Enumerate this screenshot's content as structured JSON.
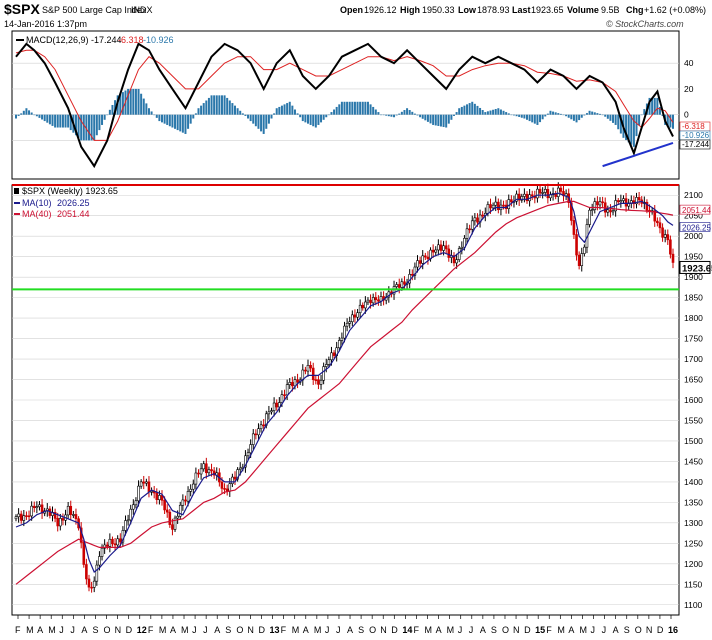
{
  "header": {
    "symbol": "$SPX",
    "name": "S&P 500 Large Cap Index",
    "exchange": "INDX",
    "date": "14-Jan-2016 1:37pm",
    "open_label": "Open",
    "open": "1926.12",
    "high_label": "High",
    "high": "1950.33",
    "low_label": "Low",
    "low": "1878.93",
    "last_label": "Last",
    "last": "1923.65",
    "volume_label": "Volume",
    "volume": "9.5B",
    "chg_label": "Chg",
    "chg": "+1.62 (+0.08%)",
    "watermark": "© StockCharts.com"
  },
  "colors": {
    "up_bar": "#000000",
    "down_bar": "#cc0000",
    "ma10": "#1a1a8c",
    "ma40": "#cc1133",
    "resistance": "#dd0000",
    "support": "#22dd22",
    "macd_line": "#000000",
    "signal_line": "#dd2222",
    "histogram": "#2a77aa",
    "trendline": "#2233cc",
    "grid": "#d0d0d0"
  },
  "chart_data": [
    {
      "type": "line",
      "panel": "MACD",
      "label": "MACD(12,26,9)",
      "values_text": {
        "macd": "-17.244",
        "signal": "-6.318",
        "histogram": "-10.926"
      },
      "ylim": [
        -50,
        65
      ],
      "yticks": [
        40,
        20,
        0,
        -20
      ],
      "right_labels": [
        "-6.318",
        "-10.926",
        "-17.244"
      ],
      "x_weeks": [
        0,
        4,
        7,
        11,
        15,
        20,
        25,
        30,
        35,
        39,
        43,
        47,
        51,
        55,
        60,
        65,
        70,
        75,
        80,
        85,
        90,
        95,
        100,
        105,
        110,
        115,
        120,
        125,
        130,
        135,
        140,
        145,
        150,
        155,
        160,
        165,
        170,
        175,
        180,
        185,
        190,
        195,
        200,
        205,
        210,
        215,
        220,
        225,
        230,
        233,
        237,
        240,
        243,
        246,
        249,
        252
      ],
      "series": [
        {
          "name": "MACD(12,26,9)",
          "values": [
            45,
            55,
            50,
            40,
            25,
            5,
            -25,
            -40,
            -20,
            10,
            35,
            55,
            50,
            35,
            20,
            5,
            25,
            45,
            55,
            50,
            40,
            20,
            40,
            50,
            30,
            20,
            30,
            45,
            50,
            55,
            45,
            40,
            50,
            40,
            30,
            20,
            35,
            45,
            40,
            45,
            40,
            35,
            25,
            35,
            30,
            20,
            30,
            25,
            10,
            -10,
            -30,
            -10,
            10,
            18,
            -5,
            -17
          ]
        },
        {
          "name": "Signal",
          "values": [
            48,
            50,
            50,
            45,
            35,
            15,
            -5,
            -20,
            -20,
            -5,
            15,
            35,
            45,
            40,
            30,
            20,
            20,
            30,
            40,
            45,
            45,
            35,
            35,
            40,
            35,
            30,
            30,
            35,
            40,
            45,
            45,
            42,
            45,
            42,
            38,
            30,
            30,
            35,
            38,
            40,
            40,
            38,
            33,
            32,
            30,
            26,
            27,
            25,
            18,
            8,
            -5,
            -10,
            -3,
            5,
            3,
            -6
          ]
        },
        {
          "name": "Histogram",
          "values": [
            -3,
            5,
            0,
            -5,
            -10,
            -10,
            -20,
            -20,
            0,
            15,
            20,
            20,
            5,
            -5,
            -10,
            -15,
            5,
            15,
            15,
            5,
            -5,
            -15,
            5,
            10,
            -5,
            -10,
            0,
            10,
            10,
            10,
            0,
            -2,
            5,
            -2,
            -8,
            -10,
            5,
            10,
            2,
            5,
            0,
            -3,
            -8,
            3,
            0,
            -6,
            3,
            0,
            -8,
            -18,
            -25,
            0,
            13,
            13,
            -8,
            -11
          ]
        }
      ],
      "trendline": {
        "from": [
          225,
          -40
        ],
        "to": [
          252,
          -22
        ]
      }
    },
    {
      "type": "candlestick",
      "panel": "Price",
      "label": "$SPX (Weekly) 1923.65",
      "legend": [
        {
          "name": "MA(10)",
          "value": "2026.25"
        },
        {
          "name": "MA(40)",
          "value": "2051.44"
        }
      ],
      "ylim": [
        1075,
        2125
      ],
      "yticks": [
        2100,
        2050,
        2000,
        1950,
        1900,
        1850,
        1800,
        1750,
        1700,
        1650,
        1600,
        1550,
        1500,
        1450,
        1400,
        1350,
        1300,
        1250,
        1200,
        1150,
        1100
      ],
      "right_labels": [
        "2051.44",
        "2026.25",
        "1923.65"
      ],
      "x_labels": [
        "F",
        "M",
        "A",
        "M",
        "J",
        "J",
        "A",
        "S",
        "O",
        "N",
        "D",
        "12",
        "F",
        "M",
        "A",
        "M",
        "J",
        "J",
        "A",
        "S",
        "O",
        "N",
        "D",
        "13",
        "F",
        "M",
        "A",
        "M",
        "J",
        "J",
        "A",
        "S",
        "O",
        "N",
        "D",
        "14",
        "F",
        "M",
        "A",
        "M",
        "J",
        "J",
        "A",
        "S",
        "O",
        "N",
        "D",
        "15",
        "F",
        "M",
        "A",
        "M",
        "J",
        "J",
        "A",
        "S",
        "O",
        "N",
        "D",
        "16"
      ],
      "x_weeks": [
        0,
        4,
        8,
        12,
        16,
        20,
        24,
        26,
        28,
        30,
        32,
        36,
        40,
        44,
        48,
        52,
        56,
        60,
        64,
        68,
        72,
        76,
        80,
        84,
        88,
        92,
        96,
        100,
        104,
        108,
        112,
        116,
        120,
        124,
        128,
        132,
        136,
        140,
        144,
        148,
        152,
        156,
        160,
        164,
        168,
        172,
        176,
        180,
        184,
        188,
        192,
        196,
        200,
        204,
        208,
        212,
        214,
        216,
        218,
        220,
        224,
        228,
        232,
        236,
        240,
        244,
        248,
        250,
        252
      ],
      "close": [
        1310,
        1320,
        1340,
        1330,
        1300,
        1330,
        1300,
        1200,
        1130,
        1160,
        1230,
        1250,
        1260,
        1330,
        1400,
        1380,
        1350,
        1290,
        1350,
        1400,
        1440,
        1420,
        1380,
        1410,
        1460,
        1520,
        1560,
        1590,
        1630,
        1650,
        1680,
        1640,
        1700,
        1740,
        1800,
        1820,
        1850,
        1840,
        1870,
        1880,
        1910,
        1950,
        1960,
        1980,
        1930,
        2000,
        2040,
        2060,
        2080,
        2070,
        2100,
        2090,
        2110,
        2100,
        2110,
        2090,
        2000,
        1920,
        1980,
        2070,
        2080,
        2060,
        2090,
        2080,
        2090,
        2050,
        2010,
        1990,
        1923.65
      ],
      "series": [
        {
          "name": "MA(10)",
          "values": [
            1290,
            1300,
            1320,
            1330,
            1320,
            1310,
            1300,
            1260,
            1210,
            1180,
            1190,
            1220,
            1245,
            1300,
            1360,
            1380,
            1370,
            1330,
            1320,
            1370,
            1410,
            1420,
            1400,
            1400,
            1440,
            1490,
            1540,
            1570,
            1610,
            1640,
            1660,
            1660,
            1680,
            1720,
            1770,
            1800,
            1830,
            1840,
            1860,
            1870,
            1900,
            1930,
            1950,
            1960,
            1950,
            1970,
            2020,
            2050,
            2070,
            2070,
            2090,
            2090,
            2100,
            2100,
            2105,
            2095,
            2060,
            2000,
            1985,
            2010,
            2060,
            2070,
            2080,
            2080,
            2085,
            2070,
            2050,
            2035,
            2026.25
          ]
        },
        {
          "name": "MA(40)",
          "values": [
            1150,
            1170,
            1190,
            1210,
            1230,
            1245,
            1260,
            1255,
            1250,
            1245,
            1240,
            1240,
            1240,
            1250,
            1270,
            1290,
            1300,
            1305,
            1310,
            1330,
            1350,
            1360,
            1375,
            1380,
            1400,
            1430,
            1460,
            1490,
            1520,
            1550,
            1580,
            1600,
            1620,
            1640,
            1670,
            1700,
            1730,
            1750,
            1770,
            1790,
            1820,
            1845,
            1870,
            1895,
            1920,
            1940,
            1960,
            1985,
            2010,
            2030,
            2045,
            2055,
            2065,
            2075,
            2080,
            2085,
            2085,
            2080,
            2075,
            2070,
            2070,
            2068,
            2065,
            2063,
            2062,
            2060,
            2056,
            2054,
            2051.44
          ]
        }
      ],
      "resistance_level": 2125,
      "support_level": 1870
    }
  ]
}
